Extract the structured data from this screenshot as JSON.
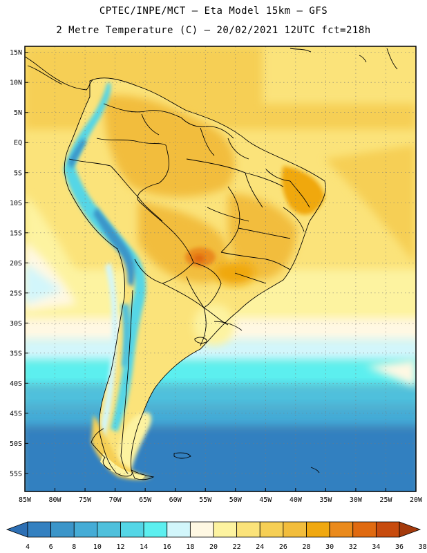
{
  "header": {
    "line1": "CPTEC/INPE/MCT –  Eta Model 15km – GFS",
    "line2": "2 Metre Temperature (C) – 20/02/2021 12UTC fct=218h"
  },
  "map": {
    "lon_range": [
      -85,
      -20
    ],
    "lat_range": [
      -58,
      16
    ],
    "lat_ticks": [
      "15N",
      "10N",
      "5N",
      "EQ",
      "5S",
      "10S",
      "15S",
      "20S",
      "25S",
      "30S",
      "35S",
      "40S",
      "45S",
      "50S",
      "55S"
    ],
    "lat_values": [
      15,
      10,
      5,
      0,
      -5,
      -10,
      -15,
      -20,
      -25,
      -30,
      -35,
      -40,
      -45,
      -50,
      -55
    ],
    "lon_ticks": [
      "85W",
      "80W",
      "75W",
      "70W",
      "65W",
      "60W",
      "55W",
      "50W",
      "45W",
      "40W",
      "35W",
      "30W",
      "25W",
      "20W"
    ],
    "lon_values": [
      -85,
      -80,
      -75,
      -70,
      -65,
      -60,
      -55,
      -50,
      -45,
      -40,
      -35,
      -30,
      -25,
      -20
    ],
    "hotspot": "18S 55W"
  },
  "legend": {
    "labels": [
      "4",
      "6",
      "8",
      "10",
      "12",
      "14",
      "16",
      "18",
      "20",
      "22",
      "24",
      "26",
      "28",
      "30",
      "32",
      "34",
      "36",
      "38"
    ],
    "colors": [
      "#2d6fb4",
      "#3380c0",
      "#3b95c9",
      "#45acd6",
      "#4fc0dc",
      "#54d6e6",
      "#5cefef",
      "#d2f6fb",
      "#fff8e3",
      "#fdf3a0",
      "#fbe37a",
      "#f6cf55",
      "#f2bd3c",
      "#f0a810",
      "#ea8a1c",
      "#e06a10",
      "#c74b0e",
      "#a43a0c"
    ]
  }
}
